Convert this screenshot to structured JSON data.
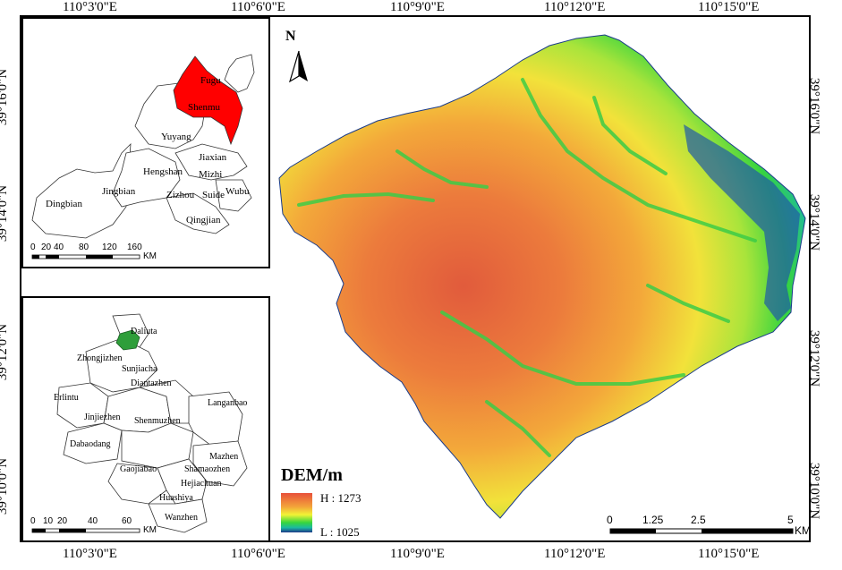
{
  "frame": {
    "top_lon_labels": [
      "110°3'0\"E",
      "110°6'0\"E",
      "110°9'0\"E",
      "110°12'0\"E",
      "110°15'0\"E"
    ],
    "bottom_lon_labels": [
      "110°3'0\"E",
      "110°6'0\"E",
      "110°9'0\"E",
      "110°12'0\"E",
      "110°15'0\"E"
    ],
    "left_lat_labels": [
      "39°16'0\"N",
      "39°14'0\"N",
      "39°12'0\"N",
      "39°10'0\"N"
    ],
    "right_lat_labels": [
      "39°16'0\"N",
      "39°14'0\"N",
      "39°12'0\"N",
      "39°10'0\"N"
    ]
  },
  "north_arrow": {
    "label": "N",
    "icon": "north-arrow-icon"
  },
  "inset_counties": {
    "highlight_color": "#ff0000",
    "labels": [
      "Fugu",
      "Shenmu",
      "Yuyang",
      "Jiaxian",
      "Hengshan",
      "Mizhi",
      "Dingbian",
      "Jingbian",
      "Zizhou",
      "Suide",
      "Wubu",
      "Qingjian"
    ],
    "scale": {
      "ticks": [
        "0",
        "20",
        "40",
        "80",
        "120",
        "160"
      ],
      "unit": "KM"
    }
  },
  "inset_towns": {
    "highlight_color": "#2e9e3a",
    "labels": [
      "Daliuta",
      "Zhongjizhen",
      "Sunjiacha",
      "Diantazhen",
      "Erlintu",
      "Jinjiezhen",
      "Shenmuzhen",
      "Langanbao",
      "Dabaodang",
      "Mazhen",
      "Gaojiabao",
      "Shamaozhen",
      "Hejiachuan",
      "Huashiya",
      "Wanzhen"
    ],
    "scale": {
      "ticks": [
        "0",
        "10",
        "20",
        "40",
        "60"
      ],
      "unit": "KM"
    }
  },
  "legend": {
    "title": "DEM/m",
    "high": "H : 1273",
    "low": "L : 1025",
    "colors": [
      "#e8503a",
      "#f3a43a",
      "#f3f335",
      "#37d63c",
      "#1bb9a0",
      "#1d3a8a"
    ]
  },
  "main_scale": {
    "ticks": [
      "0",
      "1.25",
      "2.5",
      "5"
    ],
    "unit": "KM"
  }
}
